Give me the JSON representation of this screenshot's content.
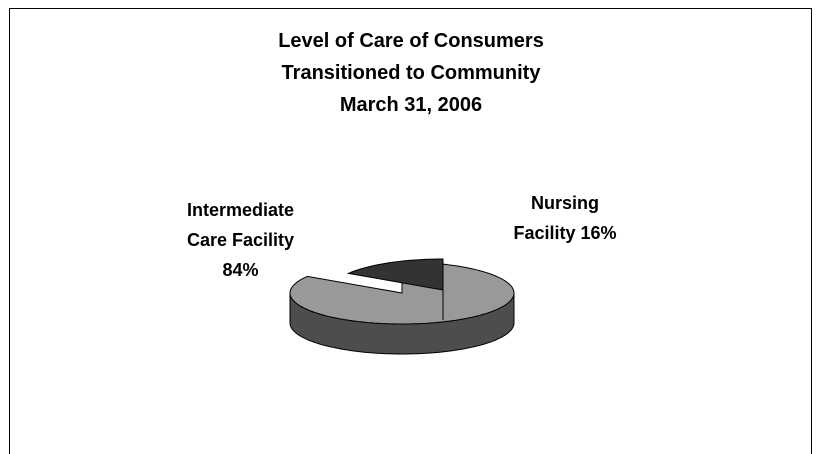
{
  "chart_data": {
    "type": "pie",
    "title": [
      "Level of Care of Consumers",
      "Transitioned to Community",
      "March 31, 2006"
    ],
    "categories": [
      "Intermediate Care Facility",
      "Nursing Facility"
    ],
    "values": [
      84,
      16
    ],
    "value_labels": [
      "84%",
      "16%"
    ],
    "colors": [
      "#999999",
      "#333333"
    ],
    "exploded": [
      false,
      true
    ]
  }
}
